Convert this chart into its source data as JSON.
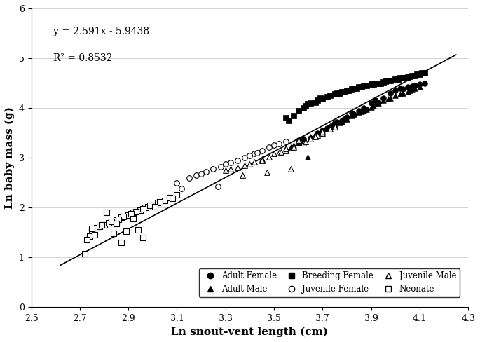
{
  "equation": "y = 2.591x - 5.9438",
  "r_squared": "R² = 0.8532",
  "slope": 2.591,
  "intercept": -5.9438,
  "xlabel": "Ln snout-vent length (cm)",
  "ylabel": "Ln baby mass (g)",
  "xlim": [
    2.5,
    4.3
  ],
  "ylim": [
    0,
    6
  ],
  "xticks": [
    2.5,
    2.7,
    2.9,
    3.1,
    3.3,
    3.5,
    3.7,
    3.9,
    4.1,
    4.3
  ],
  "yticks": [
    0,
    1,
    2,
    3,
    4,
    5,
    6
  ],
  "adult_female_x": [
    3.65,
    3.7,
    3.72,
    3.75,
    3.78,
    3.8,
    3.82,
    3.85,
    3.87,
    3.9,
    3.92,
    3.95,
    3.98,
    4.0,
    4.02,
    4.05,
    4.08,
    4.1,
    4.12,
    3.6,
    3.68,
    3.73,
    3.76,
    3.83,
    3.88,
    3.93,
    4.03,
    4.07,
    3.62,
    3.79
  ],
  "adult_female_y": [
    3.4,
    3.55,
    3.6,
    3.7,
    3.75,
    3.82,
    3.9,
    3.95,
    4.0,
    4.1,
    4.15,
    4.2,
    4.3,
    4.35,
    4.4,
    4.42,
    4.45,
    4.48,
    4.5,
    3.35,
    3.5,
    3.62,
    3.72,
    3.88,
    3.98,
    4.12,
    4.38,
    4.44,
    3.38,
    3.78
  ],
  "adult_male_x": [
    3.55,
    3.6,
    3.62,
    3.65,
    3.68,
    3.7,
    3.72,
    3.75,
    3.78,
    3.8,
    3.82,
    3.85,
    3.88,
    3.9,
    3.92,
    3.95,
    3.98,
    4.0,
    4.02,
    4.05,
    4.07,
    4.1,
    3.58,
    3.63,
    3.67,
    3.73,
    3.77,
    3.83,
    3.87,
    3.93,
    3.97,
    4.03,
    4.08,
    3.74,
    3.86,
    3.57,
    3.69,
    3.91,
    4.06,
    3.71,
    3.64
  ],
  "adult_male_y": [
    3.2,
    3.3,
    3.35,
    3.42,
    3.5,
    3.55,
    3.6,
    3.68,
    3.72,
    3.78,
    3.85,
    3.92,
    3.98,
    4.02,
    4.08,
    4.15,
    4.2,
    4.25,
    4.28,
    4.32,
    4.38,
    4.42,
    3.25,
    3.33,
    3.48,
    3.63,
    3.7,
    3.88,
    3.95,
    4.1,
    4.18,
    4.3,
    4.4,
    3.66,
    3.93,
    3.22,
    3.52,
    4.05,
    4.35,
    3.58,
    3.01
  ],
  "breeding_female_x": [
    3.55,
    3.6,
    3.63,
    3.67,
    3.7,
    3.72,
    3.75,
    3.78,
    3.8,
    3.82,
    3.85,
    3.87,
    3.9,
    3.93,
    3.95,
    3.97,
    4.0,
    4.02,
    4.05,
    4.07,
    4.1,
    4.12,
    3.58,
    3.62,
    3.65,
    3.68,
    3.73,
    3.77,
    3.83,
    3.88,
    3.92,
    3.98,
    4.03,
    4.08,
    4.11,
    3.76,
    3.81,
    3.86,
    3.91,
    3.96,
    4.01,
    4.06,
    3.64,
    3.84,
    3.94,
    4.04,
    4.09,
    3.56,
    3.69,
    3.79
  ],
  "breeding_female_y": [
    3.8,
    3.95,
    4.05,
    4.12,
    4.18,
    4.22,
    4.28,
    4.32,
    4.35,
    4.38,
    4.42,
    4.45,
    4.48,
    4.5,
    4.52,
    4.55,
    4.58,
    4.6,
    4.62,
    4.65,
    4.68,
    4.7,
    3.85,
    4.0,
    4.1,
    4.15,
    4.25,
    4.3,
    4.4,
    4.45,
    4.5,
    4.55,
    4.6,
    4.65,
    4.7,
    4.3,
    4.35,
    4.42,
    4.48,
    4.53,
    4.58,
    4.63,
    4.08,
    4.4,
    4.5,
    4.6,
    4.67,
    3.75,
    4.2,
    4.33
  ],
  "juvenile_female_x": [
    3.1,
    3.15,
    3.18,
    3.22,
    3.25,
    3.28,
    3.32,
    3.35,
    3.38,
    3.42,
    3.45,
    3.48,
    3.52,
    3.55,
    3.3,
    3.4,
    3.5,
    3.2,
    3.43,
    3.12,
    3.27
  ],
  "juvenile_female_y": [
    2.5,
    2.6,
    2.65,
    2.72,
    2.78,
    2.82,
    2.9,
    2.95,
    3.0,
    3.08,
    3.15,
    3.22,
    3.28,
    3.32,
    2.87,
    3.05,
    3.25,
    2.68,
    3.1,
    2.38,
    2.42
  ],
  "juvenile_male_x": [
    3.3,
    3.35,
    3.38,
    3.42,
    3.45,
    3.48,
    3.52,
    3.55,
    3.58,
    3.62,
    3.65,
    3.68,
    3.7,
    3.73,
    3.75,
    3.4,
    3.5,
    3.6,
    3.32,
    3.53,
    3.63,
    3.7,
    3.55,
    3.45,
    3.37,
    3.47,
    3.57,
    3.67
  ],
  "juvenile_male_y": [
    2.75,
    2.8,
    2.85,
    2.92,
    2.98,
    3.02,
    3.1,
    3.15,
    3.22,
    3.3,
    3.38,
    3.45,
    3.5,
    3.58,
    3.62,
    2.88,
    3.08,
    3.35,
    2.78,
    3.12,
    3.32,
    3.52,
    3.18,
    2.95,
    2.65,
    2.7,
    2.78,
    3.42
  ],
  "neonate_x": [
    2.72,
    2.75,
    2.77,
    2.8,
    2.82,
    2.85,
    2.87,
    2.9,
    2.92,
    2.95,
    2.97,
    3.0,
    3.02,
    3.05,
    3.07,
    3.1,
    2.78,
    2.83,
    2.88,
    2.93,
    2.98,
    3.03,
    2.75,
    2.86,
    2.96,
    3.08,
    2.79,
    2.91,
    2.84,
    2.94,
    2.74,
    2.81,
    2.89,
    2.99,
    2.73,
    2.76,
    2.85,
    2.92,
    3.01,
    2.87,
    2.96
  ],
  "neonate_y": [
    1.07,
    1.55,
    1.6,
    1.65,
    1.7,
    1.75,
    1.8,
    1.85,
    1.9,
    1.95,
    2.0,
    2.05,
    2.1,
    2.15,
    2.2,
    2.25,
    1.62,
    1.72,
    1.82,
    1.92,
    2.02,
    2.12,
    1.58,
    1.76,
    1.97,
    2.18,
    1.65,
    1.88,
    1.48,
    1.55,
    1.42,
    1.9,
    1.52,
    2.05,
    1.35,
    1.45,
    1.68,
    1.78,
    2.02,
    1.3,
    1.4
  ]
}
